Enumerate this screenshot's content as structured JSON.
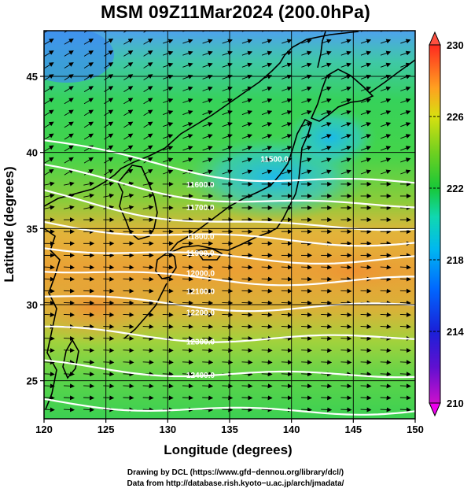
{
  "title": "MSM 09Z11Mar2024 (200.0hPa)",
  "map": {
    "x_axis_label": "Longitude (degrees)",
    "y_axis_label": "Latitude  (degrees)",
    "lon_range": [
      120,
      150
    ],
    "lat_range": [
      22.5,
      48
    ],
    "lon_ticks": [
      "120",
      "125",
      "130",
      "135",
      "140",
      "145",
      "150"
    ],
    "lat_ticks": [
      "25",
      "30",
      "35",
      "40",
      "45"
    ],
    "shaded_field": "temperature (K)",
    "vectors": "wind, mostly westerly, strongest in the jet near 30-35N",
    "contour_lines": "geopotential height, white",
    "contour_labels": [
      {
        "text": "11500.0",
        "lon": 137.5,
        "lat": 39.4
      },
      {
        "text": "11600.0",
        "lon": 131.5,
        "lat": 37.7
      },
      {
        "text": "11700.0",
        "lon": 131.5,
        "lat": 36.2
      },
      {
        "text": "11800.0",
        "lon": 131.5,
        "lat": 34.3
      },
      {
        "text": "11900.0",
        "lon": 131.5,
        "lat": 33.2
      },
      {
        "text": "12000.0",
        "lon": 131.5,
        "lat": 31.9
      },
      {
        "text": "12100.0",
        "lon": 131.5,
        "lat": 30.7
      },
      {
        "text": "12200.0",
        "lon": 131.5,
        "lat": 29.3
      },
      {
        "text": "12300.0",
        "lon": 131.5,
        "lat": 27.4
      },
      {
        "text": "12400.0",
        "lon": 131.5,
        "lat": 25.2
      }
    ],
    "contour_lats_at_120": [
      40.8,
      39.0,
      37.3,
      35.4,
      33.9,
      32.4,
      30.6,
      28.4,
      26.1,
      23.7
    ],
    "contour_lats_at_150": [
      38.0,
      36.6,
      35.2,
      34.1,
      33.0,
      31.6,
      29.9,
      27.9,
      25.5,
      23.1
    ]
  },
  "colorbar": {
    "min": 210,
    "max": 230,
    "tick_labels": [
      "230",
      "226",
      "222",
      "218",
      "214",
      "210"
    ],
    "colors": [
      "#cc00cc",
      "#2a1fd8",
      "#0050ff",
      "#00a0ff",
      "#00e0e0",
      "#10d080",
      "#20c020",
      "#7fd010",
      "#d8e010",
      "#ffb020",
      "#ff7a20",
      "#ff3020"
    ]
  },
  "credits": {
    "line1": "Drawing by DCL (https://www.gfd−dennou.org/library/dcl/)",
    "line2": "Data from http://database.rish.kyoto−u.ac.jp/arch/jmadata/"
  }
}
